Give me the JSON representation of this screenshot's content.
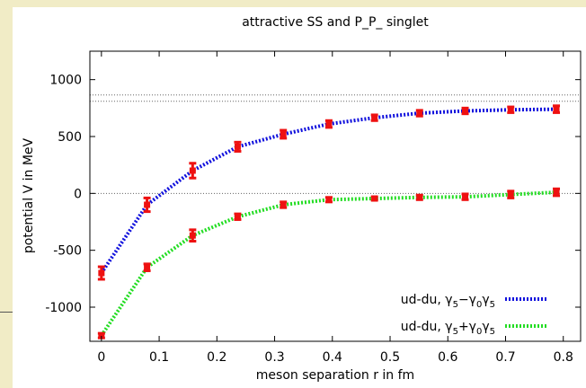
{
  "chart_data": {
    "type": "line",
    "title": "attractive SS and P_P_ singlet",
    "xlabel": "meson separation r in fm",
    "ylabel": "potential V in MeV",
    "xlim": [
      -0.02,
      0.83
    ],
    "ylim": [
      -1300,
      1250
    ],
    "xticks": [
      0,
      0.1,
      0.2,
      0.3,
      0.4,
      0.5,
      0.6,
      0.7,
      0.8
    ],
    "xtick_labels": [
      "0",
      "0.1",
      "0.2",
      "0.3",
      "0.4",
      "0.5",
      "0.6",
      "0.7",
      "0.8"
    ],
    "yticks": [
      -1000,
      -500,
      0,
      500,
      1000
    ],
    "ytick_labels": [
      "-1000",
      "-500",
      "0",
      "500",
      "1000"
    ],
    "reference_lines": [
      0,
      810,
      865
    ],
    "legend_position": "bottom-right",
    "grid": false,
    "series": [
      {
        "name": "ud-du, γ5−γ0γ5",
        "legend": {
          "base": "ud-du, γ",
          "s1": "5",
          "op": "−γ",
          "s2": "0",
          "mid": "γ",
          "s3": "5"
        },
        "color": "#1010dd",
        "x": [
          0,
          0.079,
          0.158,
          0.236,
          0.315,
          0.394,
          0.473,
          0.551,
          0.63,
          0.709,
          0.788
        ],
        "y": [
          -700,
          -100,
          200,
          410,
          520,
          610,
          665,
          705,
          725,
          735,
          740
        ],
        "err": [
          55,
          60,
          65,
          40,
          35,
          30,
          25,
          25,
          25,
          25,
          30
        ]
      },
      {
        "name": "ud-du, γ5+γ0γ5",
        "legend": {
          "base": "ud-du, γ",
          "s1": "5",
          "op": "+γ",
          "s2": "0",
          "mid": "γ",
          "s3": "5"
        },
        "color": "#22dd22",
        "x": [
          0,
          0.079,
          0.158,
          0.236,
          0.315,
          0.394,
          0.473,
          0.551,
          0.63,
          0.709,
          0.788
        ],
        "y": [
          -1250,
          -650,
          -370,
          -205,
          -100,
          -55,
          -45,
          -35,
          -30,
          -10,
          10
        ],
        "err": [
          20,
          30,
          50,
          25,
          25,
          20,
          15,
          20,
          25,
          30,
          30
        ]
      }
    ]
  }
}
